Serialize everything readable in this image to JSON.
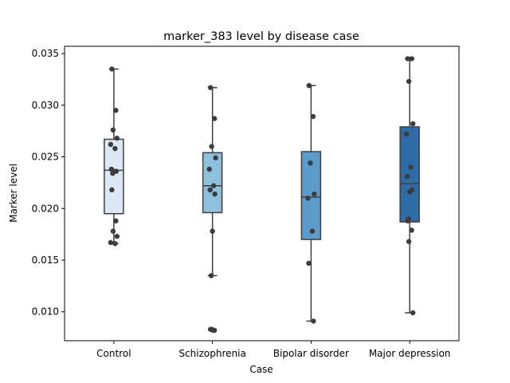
{
  "chart_data": {
    "type": "box",
    "title": "marker_383 level by disease case",
    "xlabel": "Case",
    "ylabel": "Marker level",
    "ylim": [
      0.0072,
      0.0357
    ],
    "yticks": [
      0.01,
      0.015,
      0.02,
      0.025,
      0.03,
      0.035
    ],
    "ytick_labels": [
      "0.010",
      "0.015",
      "0.020",
      "0.025",
      "0.030",
      "0.035"
    ],
    "grid": false,
    "legend": "none",
    "categories": [
      "Control",
      "Schizophrenia",
      "Bipolar disorder",
      "Major depression"
    ],
    "boxes": [
      {
        "category": "Control",
        "whisker_low": 0.0166,
        "q1": 0.0195,
        "median": 0.0237,
        "q3": 0.0267,
        "whisker_high": 0.0335,
        "color": "#dbe9f6"
      },
      {
        "category": "Schizophrenia",
        "whisker_low": 0.0135,
        "q1": 0.0196,
        "median": 0.0222,
        "q3": 0.0254,
        "whisker_high": 0.0317,
        "color": "#8dc1dd",
        "outliers": [
          0.0083,
          0.0082
        ]
      },
      {
        "category": "Bipolar disorder",
        "whisker_low": 0.0091,
        "q1": 0.017,
        "median": 0.0211,
        "q3": 0.0255,
        "whisker_high": 0.0319,
        "color": "#5b9ccc"
      },
      {
        "category": "Major depression",
        "whisker_low": 0.0099,
        "q1": 0.0187,
        "median": 0.0224,
        "q3": 0.0279,
        "whisker_high": 0.0345,
        "color": "#2e6ca8"
      }
    ],
    "points": [
      [
        0.0335,
        0.0295,
        0.0276,
        0.0268,
        0.0262,
        0.0258,
        0.0238,
        0.0236,
        0.0236,
        0.0234,
        0.0218,
        0.0188,
        0.0178,
        0.0173,
        0.0167,
        0.0166
      ],
      [
        0.0317,
        0.0287,
        0.026,
        0.0249,
        0.0238,
        0.0222,
        0.0218,
        0.0214,
        0.0178,
        0.0135,
        0.0083,
        0.0082
      ],
      [
        0.0319,
        0.0289,
        0.0244,
        0.0214,
        0.021,
        0.0178,
        0.0147,
        0.0091
      ],
      [
        0.0345,
        0.0345,
        0.0323,
        0.0282,
        0.0272,
        0.024,
        0.0231,
        0.0218,
        0.0216,
        0.019,
        0.0188,
        0.0179,
        0.0168,
        0.0099
      ]
    ],
    "point_color": "#3c3c3c",
    "line_color": "#3f3f3f"
  }
}
